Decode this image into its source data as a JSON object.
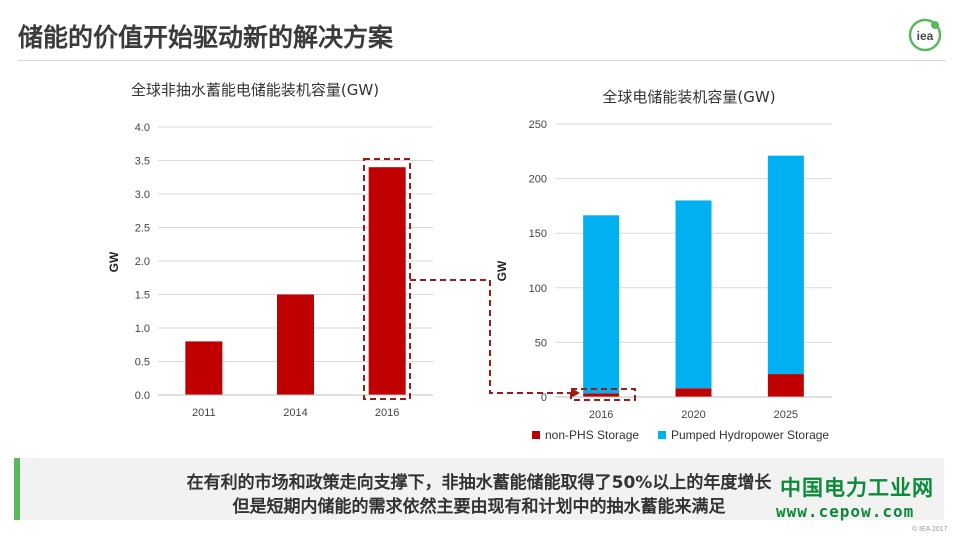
{
  "header": {
    "title": "储能的价值开始驱动新的解决方案",
    "logo_text": "iea"
  },
  "chart_data": [
    {
      "type": "bar",
      "title": "全球非抽水蓄能电储能装机容量(GW)",
      "ylabel": "GW",
      "categories": [
        "2011",
        "2014",
        "2016"
      ],
      "values": [
        0.8,
        1.5,
        3.4
      ],
      "ylim": [
        0,
        4.0
      ],
      "yticks": [
        "0.0",
        "0.5",
        "1.0",
        "1.5",
        "2.0",
        "2.5",
        "3.0",
        "3.5",
        "4.0"
      ],
      "color": "#c00000",
      "grid": true,
      "highlight_category": "2016"
    },
    {
      "type": "bar",
      "stacked": true,
      "title": "全球电储能装机容量(GW)",
      "ylabel": "GW",
      "categories": [
        "2016",
        "2020",
        "2025"
      ],
      "series": [
        {
          "name": "non-PHS Storage",
          "values": [
            3.4,
            8,
            21
          ],
          "color": "#c00000"
        },
        {
          "name": "Pumped Hydropower Storage",
          "values": [
            163,
            172,
            200
          ],
          "color": "#00b0f0"
        }
      ],
      "ylim": [
        0,
        250
      ],
      "yticks": [
        "0",
        "50",
        "100",
        "150",
        "200",
        "250"
      ],
      "grid": true,
      "legend_position": "bottom"
    }
  ],
  "banner": {
    "line1": "在有利的市场和政策走向支撑下，非抽水蓄能储能取得了50%以上的年度增长",
    "line2": "但是短期内储能的需求依然主要由现有和计划中的抽水蓄能来满足",
    "accent": "#5cb85c"
  },
  "watermark": {
    "name": "中国电力工业网",
    "url": "www.cepow.com"
  },
  "copyright": "© IEA 2017"
}
